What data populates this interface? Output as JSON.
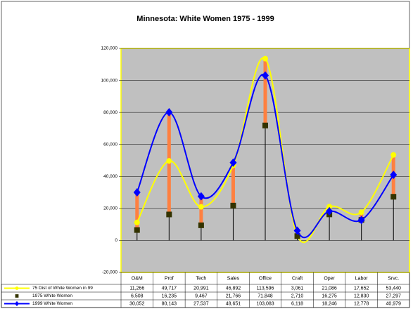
{
  "chart_data": {
    "type": "line",
    "title": "Minnesota: White Women 1975 - 1999",
    "categories": [
      "O&M",
      "Prof",
      "Tech",
      "Sales",
      "Office",
      "Craft",
      "Oper",
      "Labor",
      "Srvc."
    ],
    "ylim": [
      -20000,
      120000
    ],
    "yticks": [
      {
        "value": -20000,
        "label": "-20,000"
      },
      0,
      {
        "value": 20000,
        "label": "20,000"
      },
      {
        "value": 40000,
        "label": "40,000"
      },
      {
        "value": 60000,
        "label": "60,000"
      },
      {
        "value": 80000,
        "label": "80,000"
      },
      {
        "value": 100000,
        "label": "100,000"
      },
      {
        "value": 120000,
        "label": "120,000"
      }
    ],
    "grid": true,
    "series": [
      {
        "name": "75 Dist of White Women in 99",
        "color": "#ffff00",
        "marker": "circle",
        "values": [
          11266,
          49717,
          20991,
          46892,
          113596,
          3061,
          21086,
          17652,
          53440
        ],
        "value_labels": [
          "11,266",
          "49,717",
          "20,991",
          "46,892",
          "113,596",
          "3,061",
          "21,086",
          "17,652",
          "53,440"
        ]
      },
      {
        "name": "1975 White Women",
        "color": "#333300",
        "marker": "square",
        "values": [
          6508,
          16235,
          9467,
          21766,
          71848,
          2710,
          16275,
          12830,
          27297
        ],
        "value_labels": [
          "6,508",
          "16,235",
          "9,467",
          "21,766",
          "71,848",
          "2,710",
          "16,275",
          "12,830",
          "27,297"
        ]
      },
      {
        "name": "1999 White Women",
        "color": "#0000ff",
        "marker": "diamond",
        "values": [
          30052,
          80143,
          27537,
          48651,
          103083,
          6118,
          18246,
          12778,
          40979
        ],
        "value_labels": [
          "30,052",
          "80,143",
          "27,537",
          "48,651",
          "103,083",
          "6,118",
          "18,246",
          "12,778",
          "40,979"
        ]
      }
    ]
  }
}
